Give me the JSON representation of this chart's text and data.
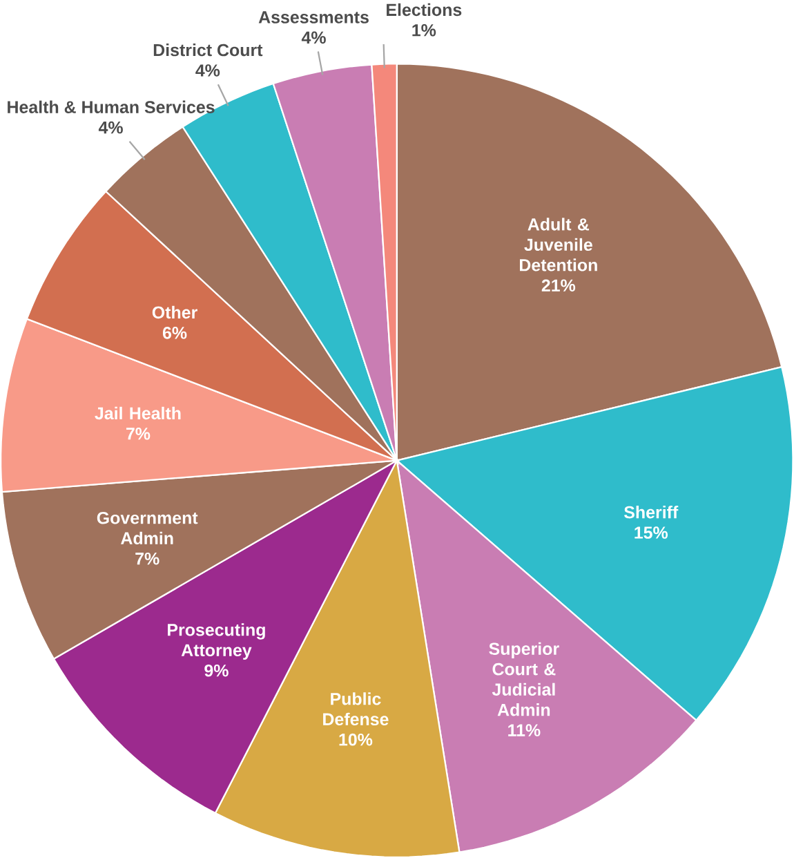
{
  "chart_data": {
    "type": "pie",
    "categories": [
      "Adult & Juvenile Detention",
      "Sheriff",
      "Superior Court & Judicial Admin",
      "Public Defense",
      "Prosecuting Attorney",
      "Government Admin",
      "Jail Health",
      "Other",
      "Health & Human Services",
      "District Court",
      "Assessments",
      "Elections"
    ],
    "values": [
      21,
      15,
      11,
      10,
      9,
      7,
      7,
      6,
      4,
      4,
      4,
      1
    ],
    "value_labels": [
      "21%",
      "15%",
      "11%",
      "10%",
      "9%",
      "7%",
      "7%",
      "6%",
      "4%",
      "4%",
      "4%",
      "1%"
    ],
    "colors": [
      "#a0725c",
      "#2fbccb",
      "#c97db3",
      "#d8a944",
      "#9c2a8e",
      "#a0725c",
      "#f89a88",
      "#d26f50",
      "#a0725c",
      "#2fbccb",
      "#c97db3",
      "#f4887b"
    ]
  }
}
